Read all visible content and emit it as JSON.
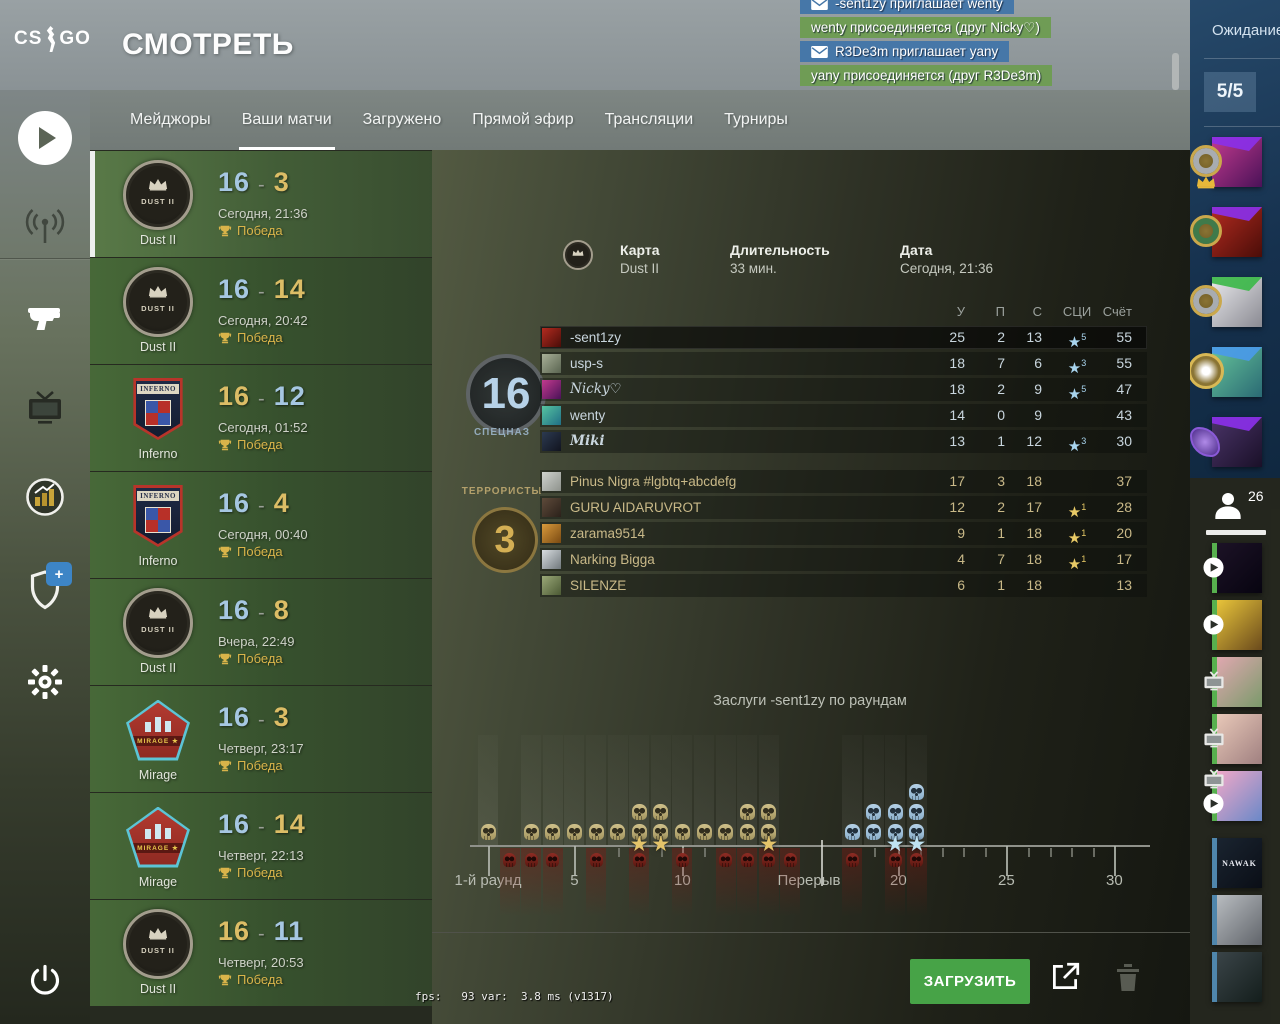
{
  "header": {
    "logo_left": "CS",
    "logo_right": "GO",
    "title": "СМОТРЕТЬ"
  },
  "tabs": {
    "items": [
      {
        "label": "Мейджоры",
        "active": false
      },
      {
        "label": "Ваши матчи",
        "active": true
      },
      {
        "label": "Загружено",
        "active": false
      },
      {
        "label": "Прямой эфир",
        "active": false
      },
      {
        "label": "Трансляции",
        "active": false
      },
      {
        "label": "Турниры",
        "active": false
      }
    ]
  },
  "notifications": [
    {
      "type": "invite",
      "icon": "envelope",
      "text": "-sent1zy приглашает wenty"
    },
    {
      "type": "join",
      "text": "wenty присоединяется (друг Nicky♡)"
    },
    {
      "type": "invite",
      "icon": "envelope",
      "text": "R3De3m приглашает yany"
    },
    {
      "type": "join",
      "text": "yany присоединяется (друг R3De3m)"
    }
  ],
  "sidebar": {
    "icons": [
      {
        "name": "play"
      },
      {
        "name": "broadcast"
      },
      {
        "name": "loadout"
      },
      {
        "name": "tv"
      },
      {
        "name": "stats"
      },
      {
        "name": "shield",
        "badge": "+"
      },
      {
        "name": "settings"
      },
      {
        "name": "power"
      }
    ]
  },
  "matches": [
    {
      "map": "Dust II",
      "map_key": "dust2",
      "score_left": "16",
      "score_right": "3",
      "left_color": "blue",
      "right_color": "yellow",
      "date": "Сегодня, 21:36",
      "result": "Победа",
      "selected": true
    },
    {
      "map": "Dust II",
      "map_key": "dust2",
      "score_left": "16",
      "score_right": "14",
      "left_color": "blue",
      "right_color": "yellow",
      "date": "Сегодня, 20:42",
      "result": "Победа",
      "selected": false
    },
    {
      "map": "Inferno",
      "map_key": "inferno",
      "score_left": "16",
      "score_right": "12",
      "left_color": "yellow",
      "right_color": "blue",
      "date": "Сегодня, 01:52",
      "result": "Победа",
      "selected": false
    },
    {
      "map": "Inferno",
      "map_key": "inferno",
      "score_left": "16",
      "score_right": "4",
      "left_color": "blue",
      "right_color": "yellow",
      "date": "Сегодня, 00:40",
      "result": "Победа",
      "selected": false
    },
    {
      "map": "Dust II",
      "map_key": "dust2",
      "score_left": "16",
      "score_right": "8",
      "left_color": "blue",
      "right_color": "yellow",
      "date": "Вчера, 22:49",
      "result": "Победа",
      "selected": false
    },
    {
      "map": "Mirage",
      "map_key": "mirage",
      "score_left": "16",
      "score_right": "3",
      "left_color": "blue",
      "right_color": "yellow",
      "date": "Четверг, 23:17",
      "result": "Победа",
      "selected": false
    },
    {
      "map": "Mirage",
      "map_key": "mirage",
      "score_left": "16",
      "score_right": "14",
      "left_color": "blue",
      "right_color": "yellow",
      "date": "Четверг, 22:13",
      "result": "Победа",
      "selected": false
    },
    {
      "map": "Dust II",
      "map_key": "dust2",
      "score_left": "16",
      "score_right": "11",
      "left_color": "yellow",
      "right_color": "blue",
      "date": "Четверг, 20:53",
      "result": "Победа",
      "selected": false
    }
  ],
  "match_details": {
    "map_label": "Карта",
    "map_value": "Dust II",
    "duration_label": "Длительность",
    "duration_value": "33 мин.",
    "date_label": "Дата",
    "date_value": "Сегодня, 21:36",
    "columns": {
      "kills": "У",
      "assists": "П",
      "deaths": "С",
      "mvps": "СЦИ",
      "score": "Счёт"
    },
    "teams": [
      {
        "name": "СПЕЦНАЗ",
        "score": "16",
        "side": "ct",
        "players": [
          {
            "name": "-sent1zy",
            "avatar": "red-wolf",
            "kills": "25",
            "assists": "2",
            "deaths": "13",
            "mvps": "5",
            "score": "55",
            "highlight": true
          },
          {
            "name": "usp-s",
            "avatar": "praying",
            "kills": "18",
            "assists": "7",
            "deaths": "6",
            "mvps": "3",
            "score": "55"
          },
          {
            "name": "Nicky♡",
            "avatar": "magenta-nebula",
            "name_style": "script",
            "kills": "18",
            "assists": "2",
            "deaths": "9",
            "mvps": "5",
            "score": "47"
          },
          {
            "name": "wenty",
            "avatar": "teal-art",
            "kills": "14",
            "assists": "0",
            "deaths": "9",
            "mvps": "",
            "score": "43"
          },
          {
            "name": "Miki",
            "avatar": "dark-blue",
            "name_style": "blackletter",
            "kills": "13",
            "assists": "1",
            "deaths": "12",
            "mvps": "3",
            "score": "30"
          }
        ]
      },
      {
        "name": "ТЕРРОРИСТЫ",
        "score": "3",
        "side": "t",
        "players": [
          {
            "name": "Pinus Nigra #lgbtq+abcdefg",
            "avatar": "light-gray",
            "kills": "17",
            "assists": "3",
            "deaths": "18",
            "mvps": "",
            "score": "37"
          },
          {
            "name": "GURU AIDARUVROT",
            "avatar": "dark-brown",
            "kills": "12",
            "assists": "2",
            "deaths": "17",
            "mvps": "1",
            "score": "28"
          },
          {
            "name": "zarama9514",
            "avatar": "amber",
            "kills": "9",
            "assists": "1",
            "deaths": "18",
            "mvps": "1",
            "score": "20"
          },
          {
            "name": "Narking Bigga",
            "avatar": "gray-white",
            "kills": "4",
            "assists": "7",
            "deaths": "18",
            "mvps": "1",
            "score": "17"
          },
          {
            "name": "SILENZE",
            "avatar": "olive-person",
            "kills": "6",
            "assists": "1",
            "deaths": "18",
            "mvps": "",
            "score": "13"
          }
        ]
      }
    ]
  },
  "rounds_chart": {
    "title": "Заслуги -sent1zy по раундам",
    "type": "round-timeline",
    "x_labels": [
      "1-й раунд",
      "5",
      "10",
      "Перерыв",
      "20",
      "25",
      "30"
    ],
    "halftime_after_round": 15,
    "axis_rounds": 30,
    "rounds": [
      {
        "round": 1,
        "kills": 1,
        "died": false,
        "mvp": false
      },
      {
        "round": 2,
        "kills": 0,
        "died": true,
        "mvp": false
      },
      {
        "round": 3,
        "kills": 1,
        "died": true,
        "mvp": false
      },
      {
        "round": 4,
        "kills": 1,
        "died": true,
        "mvp": false
      },
      {
        "round": 5,
        "kills": 1,
        "died": false,
        "mvp": false
      },
      {
        "round": 6,
        "kills": 1,
        "died": true,
        "mvp": false
      },
      {
        "round": 7,
        "kills": 1,
        "died": false,
        "mvp": false
      },
      {
        "round": 8,
        "kills": 2,
        "died": true,
        "mvp": true
      },
      {
        "round": 9,
        "kills": 2,
        "died": false,
        "mvp": true
      },
      {
        "round": 10,
        "kills": 1,
        "died": true,
        "mvp": false
      },
      {
        "round": 11,
        "kills": 1,
        "died": false,
        "mvp": false
      },
      {
        "round": 12,
        "kills": 1,
        "died": true,
        "mvp": false
      },
      {
        "round": 13,
        "kills": 2,
        "died": true,
        "mvp": false
      },
      {
        "round": 14,
        "kills": 2,
        "died": true,
        "mvp": true
      },
      {
        "round": 15,
        "kills": 0,
        "died": true,
        "mvp": false
      },
      {
        "round": 16,
        "kills": 1,
        "died": true,
        "mvp": false
      },
      {
        "round": 17,
        "kills": 2,
        "died": false,
        "mvp": false
      },
      {
        "round": 18,
        "kills": 2,
        "died": true,
        "mvp": true
      },
      {
        "round": 19,
        "kills": 3,
        "died": true,
        "mvp": true
      }
    ]
  },
  "toolbar": {
    "download_label": "ЗАГРУЗИТЬ"
  },
  "debug_text": "fps:   93 var:  3.8 ms (v1317)",
  "party_panel": {
    "title": "Ожидание",
    "slots": "5/5",
    "members": [
      {
        "avatar": "magenta-nebula",
        "banner": "purple",
        "badge": "gold-rank",
        "leader": true
      },
      {
        "avatar": "red-wolf",
        "banner": "purple",
        "badge": "gold-rank-green",
        "leader": false
      },
      {
        "avatar": "white-hair",
        "banner": "green",
        "badge": "gold-rank",
        "leader": false
      },
      {
        "avatar": "teal-art2",
        "banner": "blue",
        "badge": "gold-star",
        "leader": false
      },
      {
        "avatar": "dark-purple",
        "banner": "purple",
        "badge": "purple-wings",
        "leader": false
      }
    ]
  },
  "friends_panel": {
    "count": "26",
    "friends": [
      {
        "avatar": "purple-eyes",
        "status": "in-game",
        "overlays": [
          "play"
        ]
      },
      {
        "avatar": "yellow-cartoon",
        "status": "in-game",
        "overlays": [
          "play"
        ]
      },
      {
        "avatar": "pink-outdoor",
        "status": "watching",
        "overlays": [
          "tv"
        ]
      },
      {
        "avatar": "selfie",
        "status": "watching",
        "overlays": [
          "tv"
        ]
      },
      {
        "avatar": "pink-anime",
        "status": "watching",
        "overlays": [
          "tv",
          "play"
        ]
      },
      {
        "avatar": "nawak",
        "status": "online",
        "overlays": [],
        "label": "NAWAK"
      },
      {
        "avatar": "wolf-cartoon",
        "status": "online",
        "overlays": []
      },
      {
        "avatar": "armored",
        "status": "online",
        "overlays": []
      }
    ]
  },
  "colors": {
    "score_blue": "#a6c7e2",
    "score_yellow": "#dcbd66",
    "win_gold": "#d9b44a",
    "ct_text": "#c9d6de",
    "t_text": "#c9b988",
    "ct_star": "#a8d4ee",
    "t_star": "#e8ca66",
    "notif_invite_bg": "#4677a8",
    "notif_join_bg": "#6f9c55",
    "download_green": "#47a347",
    "status_in_game": "#57b04e",
    "status_online": "#4f86ac",
    "skull_first_half": "#c9ba83",
    "skull_second_half": "#a9c6de",
    "skull_death": "#8a2a24"
  },
  "avatar_colors": {
    "red-wolf": [
      "#b32b20",
      "#4a0d08"
    ],
    "praying": [
      "#a8b098",
      "#5a6450"
    ],
    "magenta-nebula": [
      "#c23a8e",
      "#4a1258"
    ],
    "teal-art": [
      "#57c4a0",
      "#1f6f86"
    ],
    "dark-blue": [
      "#2c3a50",
      "#11141f"
    ],
    "light-gray": [
      "#cfd2ce",
      "#8e928c"
    ],
    "dark-brown": [
      "#5e4a3a",
      "#2b211a"
    ],
    "amber": [
      "#d89a3c",
      "#7a4a12"
    ],
    "gray-white": [
      "#d8dde0",
      "#70787c"
    ],
    "olive-person": [
      "#9aa878",
      "#4c5a34"
    ],
    "white-hair": [
      "#e9e9ec",
      "#8a8a92"
    ],
    "teal-art2": [
      "#66c49a",
      "#2a6a74"
    ],
    "dark-purple": [
      "#4a3468",
      "#1a1028"
    ],
    "purple-eyes": [
      "#1c1226",
      "#070410"
    ],
    "yellow-cartoon": [
      "#e8c43a",
      "#6a4a1c"
    ],
    "pink-outdoor": [
      "#e0a8b0",
      "#7a9a6a"
    ],
    "selfie": [
      "#e8c8b8",
      "#a08080"
    ],
    "pink-anime": [
      "#f0a8c8",
      "#6a88c8"
    ],
    "nawak": [
      "#1a2430",
      "#0a0e16"
    ],
    "wolf-cartoon": [
      "#b8bcc0",
      "#60646a"
    ],
    "armored": [
      "#3a4448",
      "#141e1c"
    ]
  }
}
